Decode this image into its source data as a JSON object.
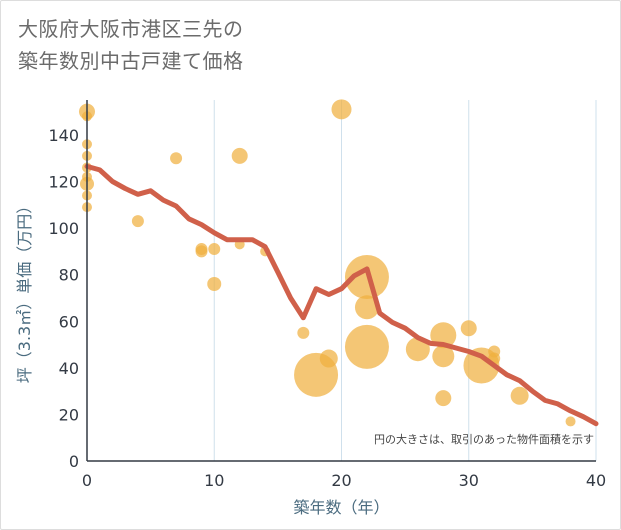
{
  "title": {
    "line1": "大阪府大阪市港区三先の",
    "line2": "築年数別中古戸建て価格"
  },
  "chart_data": {
    "type": "scatter",
    "title": "大阪府大阪市港区三先の築年数別中古戸建て価格",
    "xlabel": "築年数（年）",
    "ylabel": "坪（3.3㎡）単価（万円）",
    "xlim": [
      0,
      40
    ],
    "ylim": [
      0,
      155
    ],
    "xticks": [
      "0",
      "10",
      "20",
      "30",
      "40"
    ],
    "yticks": [
      "0",
      "20",
      "40",
      "60",
      "80",
      "100",
      "120",
      "140"
    ],
    "xtick_values": [
      0,
      10,
      20,
      30,
      40
    ],
    "ytick_values": [
      0,
      20,
      40,
      60,
      80,
      100,
      120,
      140
    ],
    "grid": "vertical",
    "note": "円の大きさは、取引のあった物件面積を示す",
    "colors": {
      "bubble": "#f0b040",
      "line": "#d0604a",
      "grid": "#cfe0ec"
    },
    "scatter_points": [
      {
        "x": 0,
        "y": 150,
        "size": 8
      },
      {
        "x": 0,
        "y": 148,
        "size": 5
      },
      {
        "x": 0,
        "y": 136,
        "size": 5
      },
      {
        "x": 0,
        "y": 131,
        "size": 5
      },
      {
        "x": 0,
        "y": 126,
        "size": 5
      },
      {
        "x": 0,
        "y": 122,
        "size": 5
      },
      {
        "x": 0,
        "y": 119,
        "size": 7
      },
      {
        "x": 0,
        "y": 114,
        "size": 5
      },
      {
        "x": 0,
        "y": 109,
        "size": 5
      },
      {
        "x": 4,
        "y": 103,
        "size": 6
      },
      {
        "x": 7,
        "y": 130,
        "size": 6
      },
      {
        "x": 9,
        "y": 91,
        "size": 6
      },
      {
        "x": 9,
        "y": 90,
        "size": 6
      },
      {
        "x": 10,
        "y": 91,
        "size": 6
      },
      {
        "x": 10,
        "y": 76,
        "size": 7
      },
      {
        "x": 12,
        "y": 131,
        "size": 8
      },
      {
        "x": 12,
        "y": 93,
        "size": 5
      },
      {
        "x": 14,
        "y": 90,
        "size": 5
      },
      {
        "x": 17,
        "y": 55,
        "size": 6
      },
      {
        "x": 18,
        "y": 37,
        "size": 22
      },
      {
        "x": 19,
        "y": 44,
        "size": 9
      },
      {
        "x": 20,
        "y": 151,
        "size": 10
      },
      {
        "x": 22,
        "y": 79,
        "size": 22
      },
      {
        "x": 22,
        "y": 66,
        "size": 12
      },
      {
        "x": 22,
        "y": 49,
        "size": 22
      },
      {
        "x": 26,
        "y": 48,
        "size": 12
      },
      {
        "x": 28,
        "y": 54,
        "size": 13
      },
      {
        "x": 28,
        "y": 45,
        "size": 11
      },
      {
        "x": 28,
        "y": 27,
        "size": 8
      },
      {
        "x": 30,
        "y": 57,
        "size": 8
      },
      {
        "x": 31,
        "y": 41,
        "size": 18
      },
      {
        "x": 32,
        "y": 47,
        "size": 6
      },
      {
        "x": 32,
        "y": 44,
        "size": 6
      },
      {
        "x": 34,
        "y": 28,
        "size": 9
      },
      {
        "x": 38,
        "y": 17,
        "size": 5
      }
    ],
    "line_series": {
      "x": [
        0,
        1,
        2,
        3,
        4,
        5,
        6,
        7,
        8,
        9,
        10,
        11,
        12,
        13,
        14,
        15,
        16,
        17,
        18,
        19,
        20,
        21,
        22,
        23,
        24,
        25,
        26,
        27,
        28,
        29,
        30,
        31,
        32,
        33,
        34,
        35,
        36,
        37,
        38,
        39,
        40
      ],
      "y": [
        126.5,
        125,
        120,
        117,
        114.5,
        116,
        112,
        109.5,
        104,
        101.5,
        98,
        95,
        95,
        95,
        92,
        81,
        70,
        61.5,
        74,
        71.5,
        74,
        79.5,
        82.5,
        63.5,
        59.5,
        57,
        53,
        50.5,
        50,
        48.5,
        47,
        45,
        41,
        37,
        34.5,
        30,
        26,
        24.5,
        21.5,
        19,
        16
      ]
    }
  }
}
